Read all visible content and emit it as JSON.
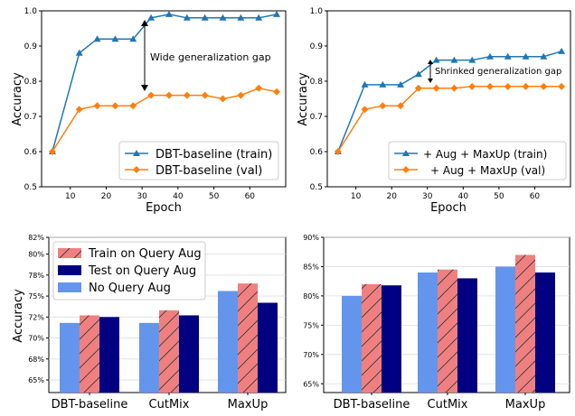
{
  "colors": {
    "blue": "#1f77b4",
    "orange": "#ff7f0e",
    "light_blue": "#6495ED",
    "salmon": "#F08080",
    "navy": "#000080"
  },
  "chart_data": [
    {
      "type": "line",
      "xlabel": "Epoch",
      "ylabel": "Accuracy",
      "xlim": [
        2,
        70
      ],
      "ylim": [
        0.5,
        1.0
      ],
      "xticks": [
        "0",
        "10",
        "20",
        "30",
        "40",
        "50",
        "60"
      ],
      "yticks": [
        "0.5",
        "0.6",
        "0.7",
        "0.8",
        "0.9",
        "1.0"
      ],
      "annotation": "Wide generalization gap",
      "legend_position": "lower-right",
      "series": [
        {
          "name": "DBT-baseline (train)",
          "marker": "triangle",
          "x": [
            5,
            12.5,
            17.5,
            22.5,
            27.5,
            32.5,
            37.5,
            42.5,
            47.5,
            52.5,
            57.5,
            62.5,
            67.5
          ],
          "values": [
            0.6,
            0.88,
            0.92,
            0.92,
            0.92,
            0.98,
            0.99,
            0.98,
            0.98,
            0.98,
            0.98,
            0.98,
            0.99
          ]
        },
        {
          "name": "DBT-baseline (val)",
          "marker": "diamond",
          "x": [
            5,
            12.5,
            17.5,
            22.5,
            27.5,
            32.5,
            37.5,
            42.5,
            47.5,
            52.5,
            57.5,
            62.5,
            67.5
          ],
          "values": [
            0.6,
            0.72,
            0.73,
            0.73,
            0.73,
            0.76,
            0.76,
            0.76,
            0.76,
            0.75,
            0.76,
            0.78,
            0.77
          ]
        }
      ]
    },
    {
      "type": "line",
      "xlabel": "Epoch",
      "ylabel": "Accuracy",
      "xlim": [
        2,
        70
      ],
      "ylim": [
        0.5,
        1.0
      ],
      "xticks": [
        "0",
        "10",
        "20",
        "30",
        "40",
        "50",
        "60"
      ],
      "yticks": [
        "0.5",
        "0.6",
        "0.7",
        "0.8",
        "0.9",
        "1.0"
      ],
      "annotation": "Shrinked generalization gap",
      "legend_position": "lower-right",
      "series": [
        {
          "name": "+ Aug + MaxUp (train)",
          "marker": "triangle",
          "x": [
            5,
            12.5,
            17.5,
            22.5,
            27.5,
            32.5,
            37.5,
            42.5,
            47.5,
            52.5,
            57.5,
            62.5,
            67.5
          ],
          "values": [
            0.6,
            0.79,
            0.79,
            0.79,
            0.82,
            0.86,
            0.86,
            0.86,
            0.87,
            0.87,
            0.87,
            0.87,
            0.885
          ]
        },
        {
          "name": "+ Aug + MaxUp (val)",
          "marker": "diamond",
          "x": [
            5,
            12.5,
            17.5,
            22.5,
            27.5,
            32.5,
            37.5,
            42.5,
            47.5,
            52.5,
            57.5,
            62.5,
            67.5
          ],
          "values": [
            0.6,
            0.72,
            0.73,
            0.73,
            0.78,
            0.78,
            0.78,
            0.785,
            0.785,
            0.785,
            0.785,
            0.785,
            0.785
          ]
        }
      ]
    },
    {
      "type": "bar",
      "ylabel": "Accuracy",
      "categories": [
        "DBT-baseline",
        "CutMix",
        "MaxUp"
      ],
      "ylim": [
        63.5,
        82
      ],
      "yticks": [
        "65%",
        "68%",
        "70%",
        "72%",
        "75%",
        "78%",
        "80%",
        "82%"
      ],
      "ytick_values": [
        65,
        67.5,
        70,
        72.5,
        75,
        77.5,
        80,
        82
      ],
      "legend_position": "top-left",
      "series": [
        {
          "name": "Train on Query Aug",
          "color": "#F08080",
          "hatch": true,
          "values": [
            72.7,
            73.3,
            76.5
          ]
        },
        {
          "name": "Test on Query Aug",
          "color": "#000080",
          "values": [
            72.5,
            72.7,
            74.2
          ]
        },
        {
          "name": "No Query Aug",
          "color": "#6495ED",
          "values": [
            71.8,
            71.8,
            75.6
          ]
        }
      ]
    },
    {
      "type": "bar",
      "categories": [
        "DBT-baseline",
        "CutMix",
        "MaxUp"
      ],
      "ylim": [
        63.5,
        90
      ],
      "yticks": [
        "65%",
        "70%",
        "75%",
        "80%",
        "85%",
        "90%"
      ],
      "ytick_values": [
        65,
        70,
        75,
        80,
        85,
        90
      ],
      "series": [
        {
          "name": "No Query Aug",
          "color": "#6495ED",
          "values": [
            80.0,
            84.0,
            85.0
          ]
        },
        {
          "name": "Train on Query Aug",
          "color": "#F08080",
          "hatch": true,
          "values": [
            82.0,
            84.5,
            87.0
          ]
        },
        {
          "name": "Test on Query Aug",
          "color": "#000080",
          "values": [
            81.8,
            83.0,
            84.0
          ]
        }
      ]
    }
  ]
}
